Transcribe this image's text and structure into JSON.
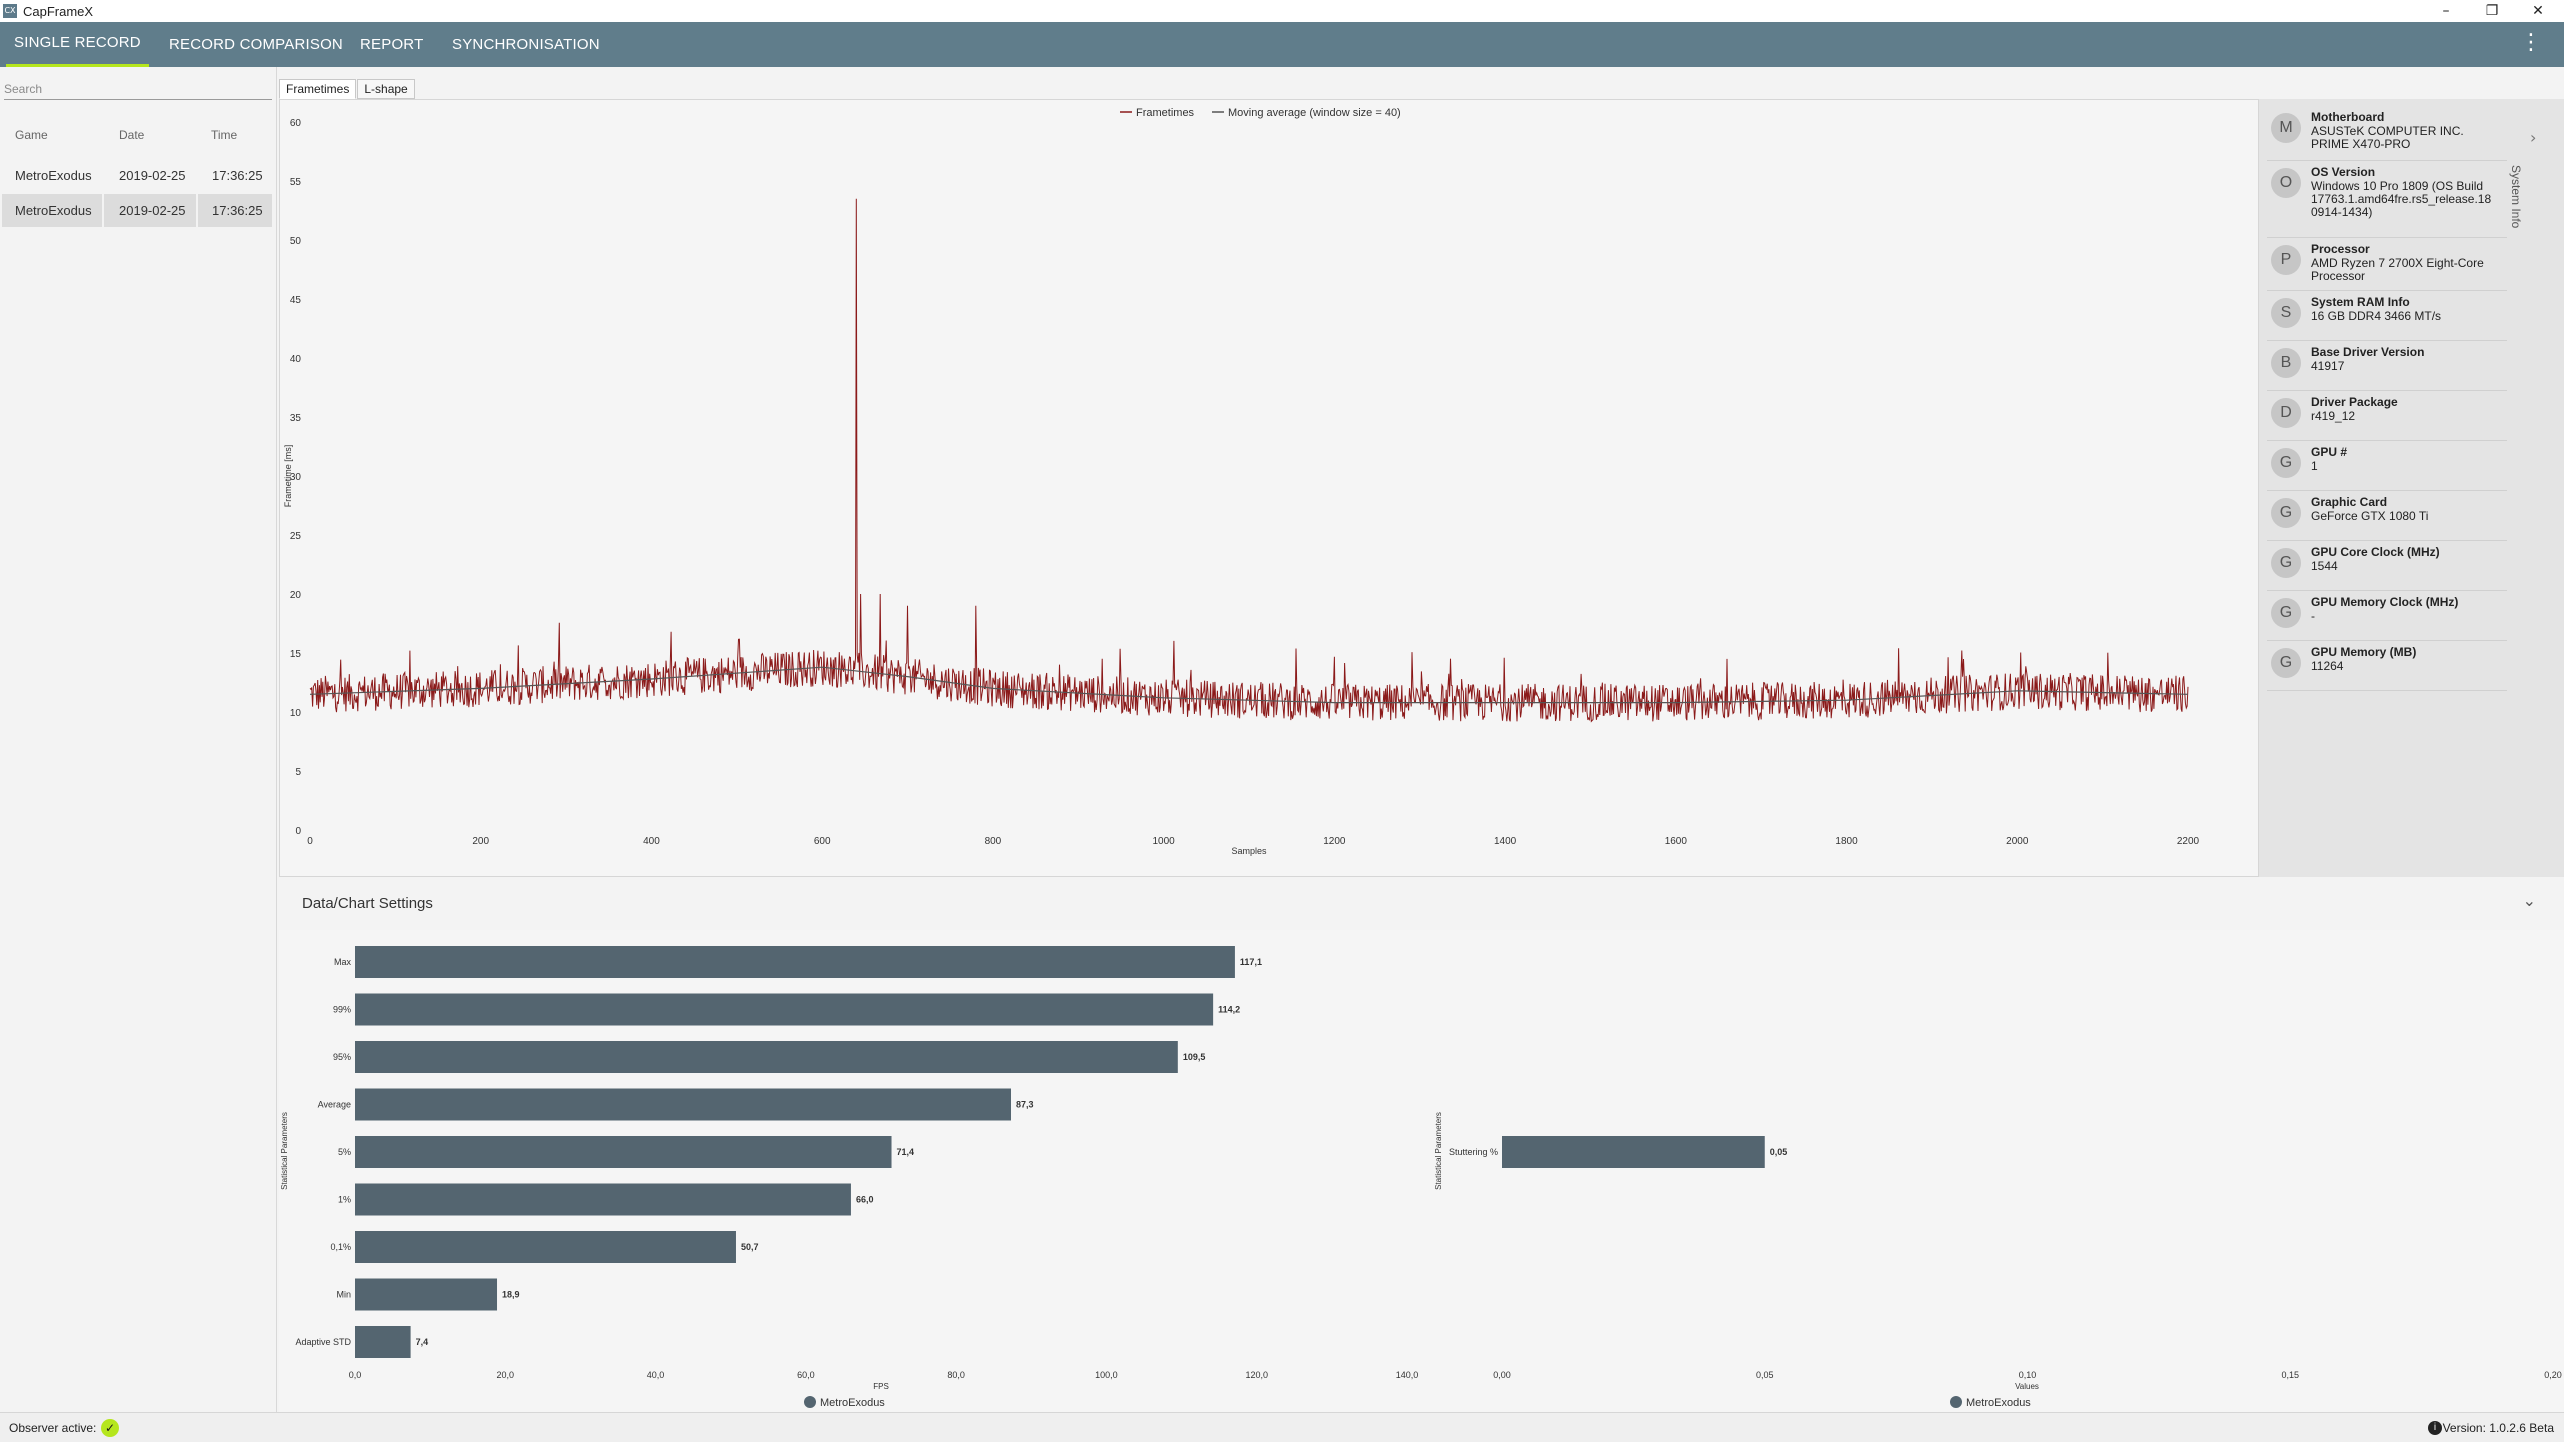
{
  "window": {
    "title": "CapFrameX",
    "icon_label": "CX"
  },
  "nav": {
    "tabs": [
      "SINGLE RECORD",
      "RECORD COMPARISON",
      "REPORT",
      "SYNCHRONISATION"
    ],
    "active": "SINGLE RECORD"
  },
  "sidebar": {
    "search_placeholder": "Search",
    "columns": [
      "Game",
      "Date",
      "Time"
    ],
    "records": [
      {
        "game": "MetroExodus",
        "date": "2019-02-25",
        "time": "17:36:25",
        "selected": false
      },
      {
        "game": "MetroExodus",
        "date": "2019-02-25",
        "time": "17:36:25",
        "selected": true
      }
    ]
  },
  "chart_tabs": [
    "Frametimes",
    "L-shape"
  ],
  "system_info": {
    "title": "System Info",
    "items": [
      {
        "avatar": "M",
        "label": "Motherboard",
        "value": [
          "ASUSTeK COMPUTER INC.",
          "PRIME X470-PRO"
        ]
      },
      {
        "avatar": "O",
        "label": "OS Version",
        "value": [
          "Windows 10 Pro 1809 (OS Build",
          "17763.1.amd64fre.rs5_release.18",
          "0914-1434)"
        ]
      },
      {
        "avatar": "P",
        "label": "Processor",
        "value": [
          "AMD Ryzen 7 2700X Eight-Core",
          "Processor"
        ]
      },
      {
        "avatar": "S",
        "label": "System RAM Info",
        "value": [
          "16 GB DDR4 3466 MT/s"
        ]
      },
      {
        "avatar": "B",
        "label": "Base Driver Version",
        "value": [
          "41917"
        ]
      },
      {
        "avatar": "D",
        "label": "Driver Package",
        "value": [
          "r419_12"
        ]
      },
      {
        "avatar": "G",
        "label": "GPU #",
        "value": [
          "1"
        ]
      },
      {
        "avatar": "G",
        "label": "Graphic Card",
        "value": [
          "GeForce GTX 1080 Ti"
        ]
      },
      {
        "avatar": "G",
        "label": "GPU Core Clock (MHz)",
        "value": [
          "1544"
        ]
      },
      {
        "avatar": "G",
        "label": "GPU Memory Clock (MHz)",
        "value": [
          "-"
        ]
      },
      {
        "avatar": "G",
        "label": "GPU Memory (MB)",
        "value": [
          "11264"
        ]
      }
    ]
  },
  "settings": {
    "label": "Data/Chart Settings"
  },
  "status": {
    "observer_label": "Observer active:",
    "version": "Version: 1.0.2.6 Beta"
  },
  "colors": {
    "frametimes": "#8b1a1a",
    "moving_average": "#555555",
    "bar": "#546570",
    "nav": "#607d8b",
    "accent": "#b5e61d"
  },
  "chart_data": [
    {
      "type": "line",
      "title": "",
      "xlabel": "Samples",
      "ylabel": "Frametime [ms]",
      "xlim": [
        0,
        2200
      ],
      "ylim": [
        0,
        60
      ],
      "x_ticks": [
        0,
        200,
        400,
        600,
        800,
        1000,
        1200,
        1400,
        1600,
        1800,
        2000,
        2200
      ],
      "y_ticks": [
        0,
        5,
        10,
        15,
        20,
        25,
        30,
        35,
        40,
        45,
        50,
        55,
        60
      ],
      "legend": "top-center",
      "series": [
        {
          "name": "Frametimes",
          "color": "#8b1a1a",
          "description_points": [
            [
              0,
              11.5
            ],
            [
              200,
              12.0
            ],
            [
              400,
              12.8
            ],
            [
              600,
              13.8
            ],
            [
              640,
              53.5
            ],
            [
              660,
              13.5
            ],
            [
              800,
              12.0
            ],
            [
              1000,
              11.2
            ],
            [
              1200,
              10.8
            ],
            [
              1400,
              10.8
            ],
            [
              1600,
              10.8
            ],
            [
              1800,
              11.0
            ],
            [
              2000,
              11.8
            ],
            [
              2200,
              11.5
            ]
          ]
        },
        {
          "name": "Moving average (window size = 40)",
          "color": "#555555",
          "points": [
            [
              0,
              11.5
            ],
            [
              200,
              12.0
            ],
            [
              400,
              12.8
            ],
            [
              600,
              13.8
            ],
            [
              700,
              13.0
            ],
            [
              800,
              12.0
            ],
            [
              1000,
              11.2
            ],
            [
              1200,
              10.8
            ],
            [
              1400,
              10.8
            ],
            [
              1600,
              10.8
            ],
            [
              1800,
              11.0
            ],
            [
              2000,
              11.8
            ],
            [
              2200,
              11.5
            ]
          ]
        }
      ]
    },
    {
      "type": "bar",
      "orientation": "horizontal",
      "xlabel": "FPS",
      "ylabel": "Statistical Parameters",
      "xlim": [
        0,
        140
      ],
      "x_ticks": [
        "0,0",
        "20,0",
        "40,0",
        "60,0",
        "80,0",
        "100,0",
        "120,0",
        "140,0"
      ],
      "categories": [
        "Max",
        "99%",
        "95%",
        "Average",
        "5%",
        "1%",
        "0,1%",
        "Min",
        "Adaptive STD"
      ],
      "values": [
        117.1,
        114.2,
        109.5,
        87.3,
        71.4,
        66.0,
        50.7,
        18.9,
        7.4
      ],
      "labels": [
        "117,1",
        "114,2",
        "109,5",
        "87,3",
        "71,4",
        "66,0",
        "50,7",
        "18,9",
        "7,4"
      ],
      "legend": "MetroExodus"
    },
    {
      "type": "bar",
      "orientation": "horizontal",
      "xlabel": "Values",
      "ylabel": "Statistical Parameters",
      "xlim": [
        0,
        0.2
      ],
      "x_ticks": [
        "0,00",
        "0,05",
        "0,10",
        "0,15",
        "0,20"
      ],
      "categories": [
        "Stuttering %"
      ],
      "values": [
        0.05
      ],
      "labels": [
        "0,05"
      ],
      "legend": "MetroExodus"
    }
  ]
}
